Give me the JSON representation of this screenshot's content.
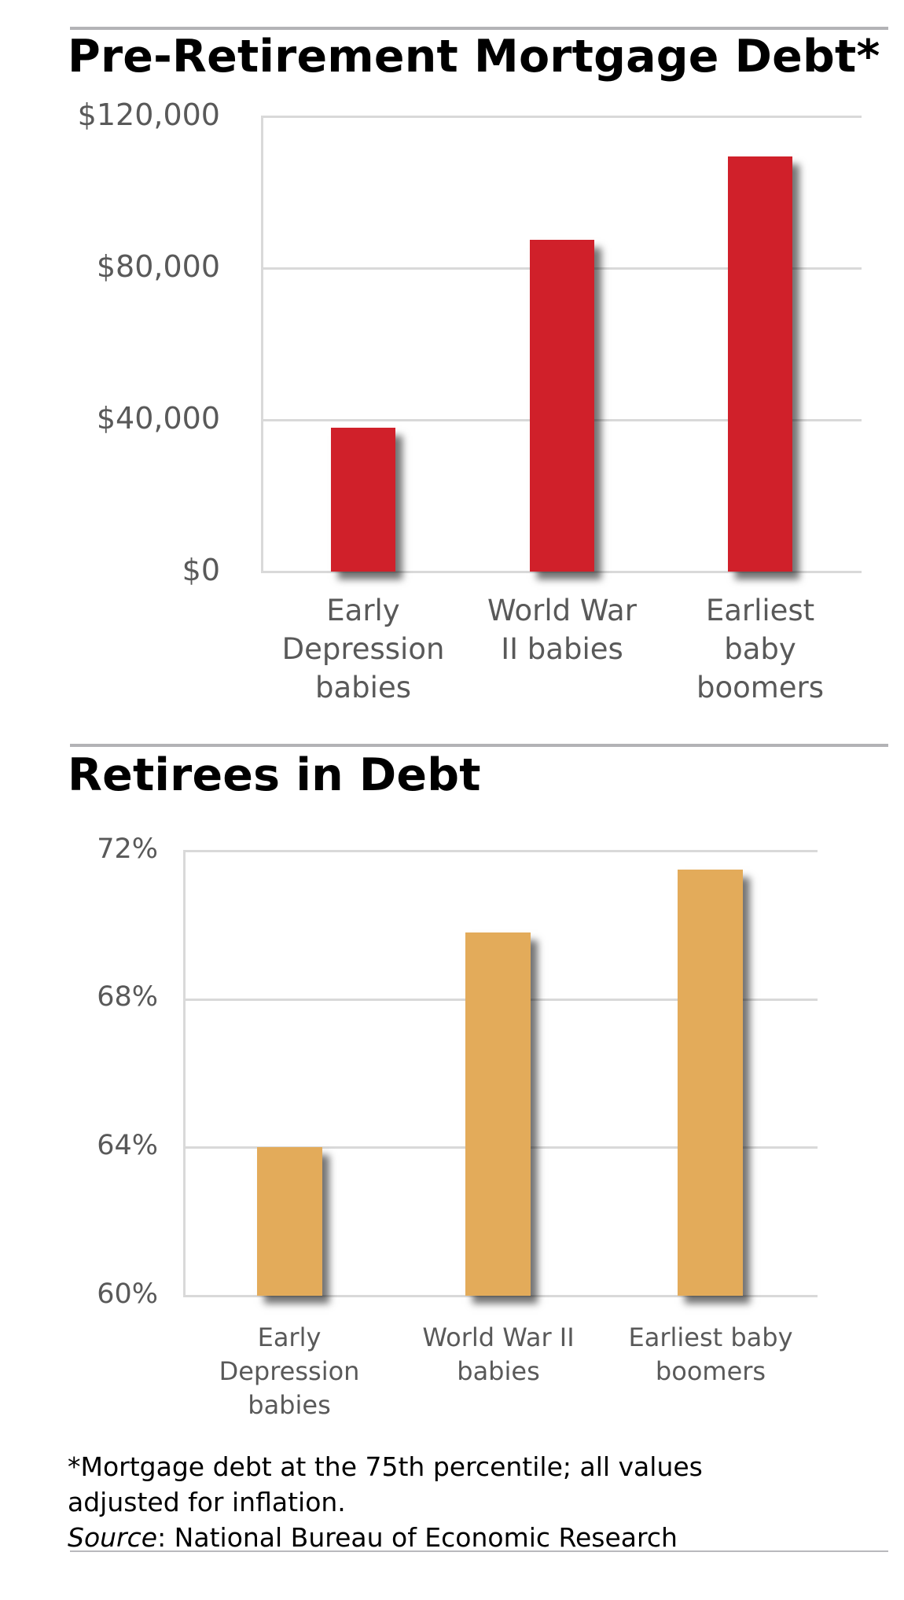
{
  "section1": {
    "title": "Pre-Retirement Mortgage Debt*"
  },
  "section2": {
    "title": "Retirees in Debt"
  },
  "footnote": {
    "line1": "*Mortgage debt at the 75th percentile; all values",
    "line2": "adjusted for inflation.",
    "source_label": "Source",
    "source_text": ": National Bureau of Economic Research"
  },
  "colors": {
    "mortgage_bar": "#d0202a",
    "retirees_bar": "#e3ab5a",
    "gridline": "#d9d9d9",
    "tick_text": "#595959",
    "rule": "#b3b3b6"
  },
  "chart_data": [
    {
      "type": "bar",
      "title": "Pre-Retirement Mortgage Debt*",
      "categories": [
        "Early Depression babies",
        "World War II babies",
        "Earliest baby boomers"
      ],
      "category_lines": [
        [
          "Early",
          "Depression",
          "babies"
        ],
        [
          "World War",
          "II babies"
        ],
        [
          "Earliest",
          "baby",
          "boomers"
        ]
      ],
      "values": [
        38000,
        87500,
        109500
      ],
      "xlabel": "",
      "ylabel": "",
      "ylim": [
        0,
        120000
      ],
      "yticks": [
        0,
        40000,
        80000,
        120000
      ],
      "ytick_labels": [
        "$0",
        "$40,000",
        "$80,000",
        "$120,000"
      ],
      "grid": true,
      "legend": "none",
      "color": "#d0202a"
    },
    {
      "type": "bar",
      "title": "Retirees in Debt",
      "categories": [
        "Early Depression babies",
        "World War II babies",
        "Earliest baby boomers"
      ],
      "category_lines": [
        [
          "Early",
          "Depression",
          "babies"
        ],
        [
          "World War II",
          "babies"
        ],
        [
          "Earliest baby",
          "boomers"
        ]
      ],
      "values": [
        64.0,
        69.8,
        71.5
      ],
      "unit": "%",
      "xlabel": "",
      "ylabel": "",
      "ylim": [
        60,
        72
      ],
      "yticks": [
        60,
        64,
        68,
        72
      ],
      "ytick_labels": [
        "60%",
        "64%",
        "68%",
        "72%"
      ],
      "grid": true,
      "legend": "none",
      "color": "#e3ab5a"
    }
  ]
}
